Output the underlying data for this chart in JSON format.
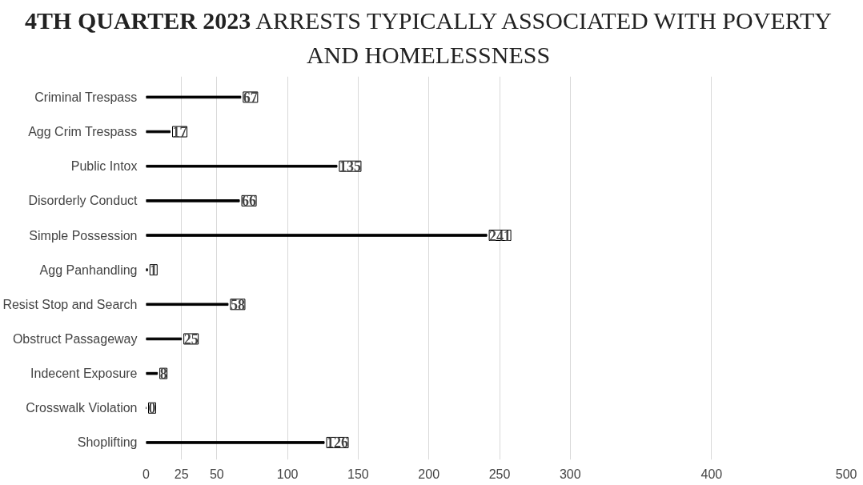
{
  "chart_data": {
    "type": "bar",
    "orientation": "horizontal",
    "title": "4TH QUARTER 2023",
    "subtitle": "ARRESTS TYPICALLY ASSOCIATED WITH POVERTY AND HOMELESSNESS",
    "categories": [
      "Criminal Trespass",
      "Agg Crim Trespass",
      "Public Intox",
      "Disorderly Conduct",
      "Simple Possession",
      "Agg Panhandling",
      "Resist Stop and Search",
      "Obstruct Passageway",
      "Indecent Exposure",
      "Crosswalk Violation",
      "Shoplifting"
    ],
    "values": [
      67,
      17,
      135,
      66,
      241,
      1,
      58,
      25,
      8,
      0,
      126
    ],
    "color": "#000000",
    "xlim": [
      0,
      500
    ],
    "xticks": [
      0,
      25,
      50,
      100,
      150,
      200,
      250,
      300,
      400,
      500
    ],
    "grid": "x",
    "data_labels": true
  }
}
